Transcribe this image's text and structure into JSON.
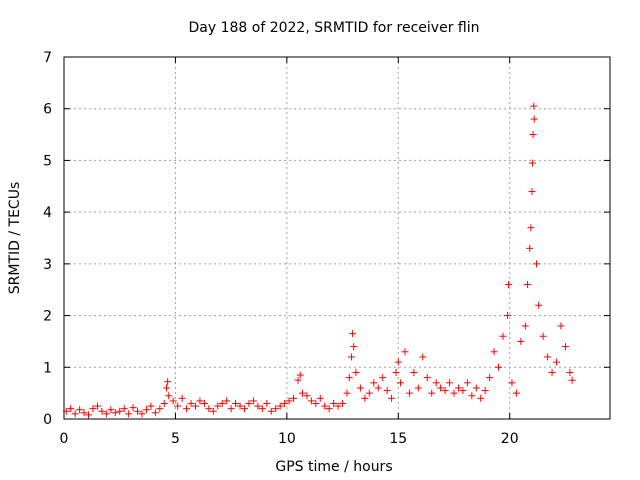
{
  "chart_data": {
    "type": "scatter",
    "title": "Day 188 of 2022, SRMTID for receiver flin",
    "xlabel": "GPS time / hours",
    "ylabel": "SRMTID / TECUs",
    "xlim": [
      0,
      24.5
    ],
    "ylim": [
      0,
      7
    ],
    "xticks": [
      0,
      5,
      10,
      15,
      20
    ],
    "yticks": [
      0,
      1,
      2,
      3,
      4,
      5,
      6,
      7
    ],
    "grid": true,
    "marker": "plus",
    "color": "#ff0000",
    "series": [
      {
        "points": [
          [
            0.1,
            0.15
          ],
          [
            0.3,
            0.2
          ],
          [
            0.5,
            0.1
          ],
          [
            0.7,
            0.18
          ],
          [
            0.9,
            0.12
          ],
          [
            1.1,
            0.08
          ],
          [
            1.3,
            0.2
          ],
          [
            1.5,
            0.25
          ],
          [
            1.7,
            0.15
          ],
          [
            1.9,
            0.1
          ],
          [
            2.1,
            0.18
          ],
          [
            2.3,
            0.12
          ],
          [
            2.5,
            0.15
          ],
          [
            2.7,
            0.2
          ],
          [
            2.9,
            0.1
          ],
          [
            3.1,
            0.22
          ],
          [
            3.3,
            0.15
          ],
          [
            3.5,
            0.1
          ],
          [
            3.7,
            0.18
          ],
          [
            3.9,
            0.25
          ],
          [
            4.1,
            0.12
          ],
          [
            4.3,
            0.2
          ],
          [
            4.5,
            0.3
          ],
          [
            4.6,
            0.6
          ],
          [
            4.65,
            0.72
          ],
          [
            4.7,
            0.45
          ],
          [
            4.9,
            0.35
          ],
          [
            5.1,
            0.25
          ],
          [
            5.3,
            0.4
          ],
          [
            5.5,
            0.2
          ],
          [
            5.7,
            0.3
          ],
          [
            5.9,
            0.25
          ],
          [
            6.1,
            0.35
          ],
          [
            6.3,
            0.3
          ],
          [
            6.5,
            0.2
          ],
          [
            6.7,
            0.15
          ],
          [
            6.9,
            0.25
          ],
          [
            7.1,
            0.3
          ],
          [
            7.3,
            0.35
          ],
          [
            7.5,
            0.2
          ],
          [
            7.7,
            0.3
          ],
          [
            7.9,
            0.25
          ],
          [
            8.1,
            0.2
          ],
          [
            8.3,
            0.3
          ],
          [
            8.5,
            0.35
          ],
          [
            8.7,
            0.25
          ],
          [
            8.9,
            0.2
          ],
          [
            9.1,
            0.3
          ],
          [
            9.3,
            0.15
          ],
          [
            9.5,
            0.2
          ],
          [
            9.7,
            0.25
          ],
          [
            9.9,
            0.3
          ],
          [
            10.1,
            0.35
          ],
          [
            10.3,
            0.4
          ],
          [
            10.5,
            0.75
          ],
          [
            10.6,
            0.85
          ],
          [
            10.7,
            0.5
          ],
          [
            10.9,
            0.45
          ],
          [
            11.1,
            0.35
          ],
          [
            11.3,
            0.3
          ],
          [
            11.5,
            0.4
          ],
          [
            11.7,
            0.25
          ],
          [
            11.9,
            0.2
          ],
          [
            12.1,
            0.3
          ],
          [
            12.3,
            0.25
          ],
          [
            12.5,
            0.3
          ],
          [
            12.7,
            0.5
          ],
          [
            12.8,
            0.8
          ],
          [
            12.9,
            1.2
          ],
          [
            12.95,
            1.65
          ],
          [
            13.0,
            1.4
          ],
          [
            13.1,
            0.9
          ],
          [
            13.3,
            0.6
          ],
          [
            13.5,
            0.4
          ],
          [
            13.7,
            0.5
          ],
          [
            13.9,
            0.7
          ],
          [
            14.1,
            0.6
          ],
          [
            14.3,
            0.8
          ],
          [
            14.5,
            0.55
          ],
          [
            14.7,
            0.4
          ],
          [
            14.9,
            0.9
          ],
          [
            15.0,
            1.1
          ],
          [
            15.1,
            0.7
          ],
          [
            15.3,
            1.3
          ],
          [
            15.5,
            0.5
          ],
          [
            15.7,
            0.9
          ],
          [
            15.9,
            0.6
          ],
          [
            16.1,
            1.2
          ],
          [
            16.3,
            0.8
          ],
          [
            16.5,
            0.5
          ],
          [
            16.7,
            0.7
          ],
          [
            16.9,
            0.6
          ],
          [
            17.1,
            0.55
          ],
          [
            17.3,
            0.7
          ],
          [
            17.5,
            0.5
          ],
          [
            17.7,
            0.6
          ],
          [
            17.9,
            0.55
          ],
          [
            18.1,
            0.7
          ],
          [
            18.3,
            0.45
          ],
          [
            18.5,
            0.6
          ],
          [
            18.7,
            0.4
          ],
          [
            18.9,
            0.55
          ],
          [
            19.1,
            0.8
          ],
          [
            19.3,
            1.3
          ],
          [
            19.5,
            1.0
          ],
          [
            19.7,
            1.6
          ],
          [
            19.9,
            2.0
          ],
          [
            19.95,
            2.6
          ],
          [
            20.1,
            0.7
          ],
          [
            20.3,
            0.5
          ],
          [
            20.5,
            1.5
          ],
          [
            20.7,
            1.8
          ],
          [
            20.8,
            2.6
          ],
          [
            20.9,
            3.3
          ],
          [
            20.95,
            3.7
          ],
          [
            21.0,
            4.4
          ],
          [
            21.02,
            4.95
          ],
          [
            21.05,
            5.5
          ],
          [
            21.08,
            6.05
          ],
          [
            21.1,
            5.8
          ],
          [
            21.2,
            3.0
          ],
          [
            21.3,
            2.2
          ],
          [
            21.5,
            1.6
          ],
          [
            21.7,
            1.2
          ],
          [
            21.9,
            0.9
          ],
          [
            22.1,
            1.1
          ],
          [
            22.3,
            1.8
          ],
          [
            22.5,
            1.4
          ],
          [
            22.7,
            0.9
          ],
          [
            22.8,
            0.75
          ]
        ]
      }
    ]
  }
}
